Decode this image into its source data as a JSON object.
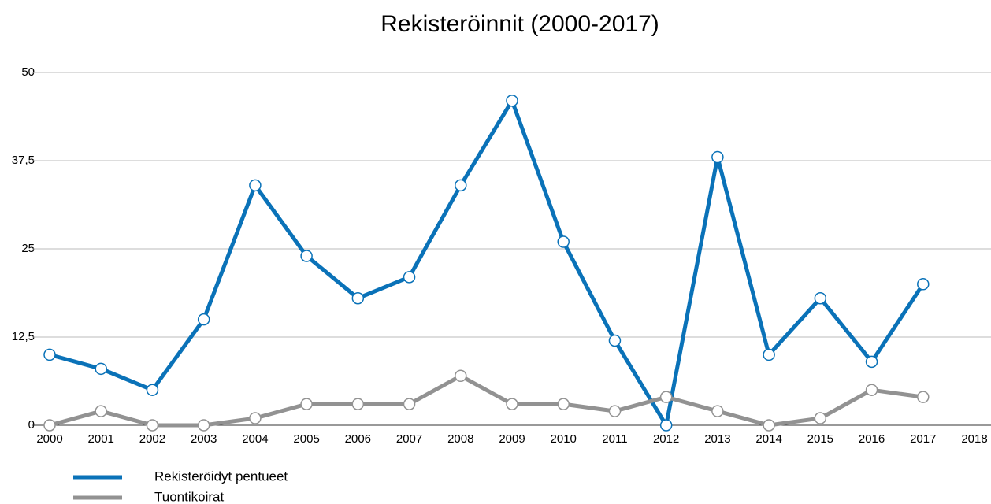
{
  "chart_data": {
    "type": "line",
    "title": "Rekisteröinnit (2000-2017)",
    "x": [
      2000,
      2001,
      2002,
      2003,
      2004,
      2005,
      2006,
      2007,
      2008,
      2009,
      2010,
      2011,
      2012,
      2013,
      2014,
      2015,
      2016,
      2017
    ],
    "series": [
      {
        "name": "Rekisteröidyt pentueet",
        "color": "#0a72b8",
        "values": [
          10,
          8,
          5,
          15,
          34,
          24,
          18,
          21,
          34,
          46,
          26,
          12,
          0,
          38,
          10,
          18,
          9,
          20
        ]
      },
      {
        "name": "Tuontikoirat",
        "color": "#929292",
        "values": [
          0,
          2,
          0,
          0,
          1,
          3,
          3,
          3,
          7,
          3,
          3,
          2,
          4,
          2,
          0,
          1,
          5,
          4
        ]
      }
    ],
    "xlim": [
      2000,
      2018
    ],
    "xticks": [
      2000,
      2001,
      2002,
      2003,
      2004,
      2005,
      2006,
      2007,
      2008,
      2009,
      2010,
      2011,
      2012,
      2013,
      2014,
      2015,
      2016,
      2017,
      2018
    ],
    "ylim": [
      0,
      50
    ],
    "yticks": [
      0,
      {
        "value": 12.5,
        "label": "12,5"
      },
      25,
      {
        "value": 37.5,
        "label": "37,5"
      },
      50
    ],
    "grid": true,
    "legend": "bottom-left"
  }
}
